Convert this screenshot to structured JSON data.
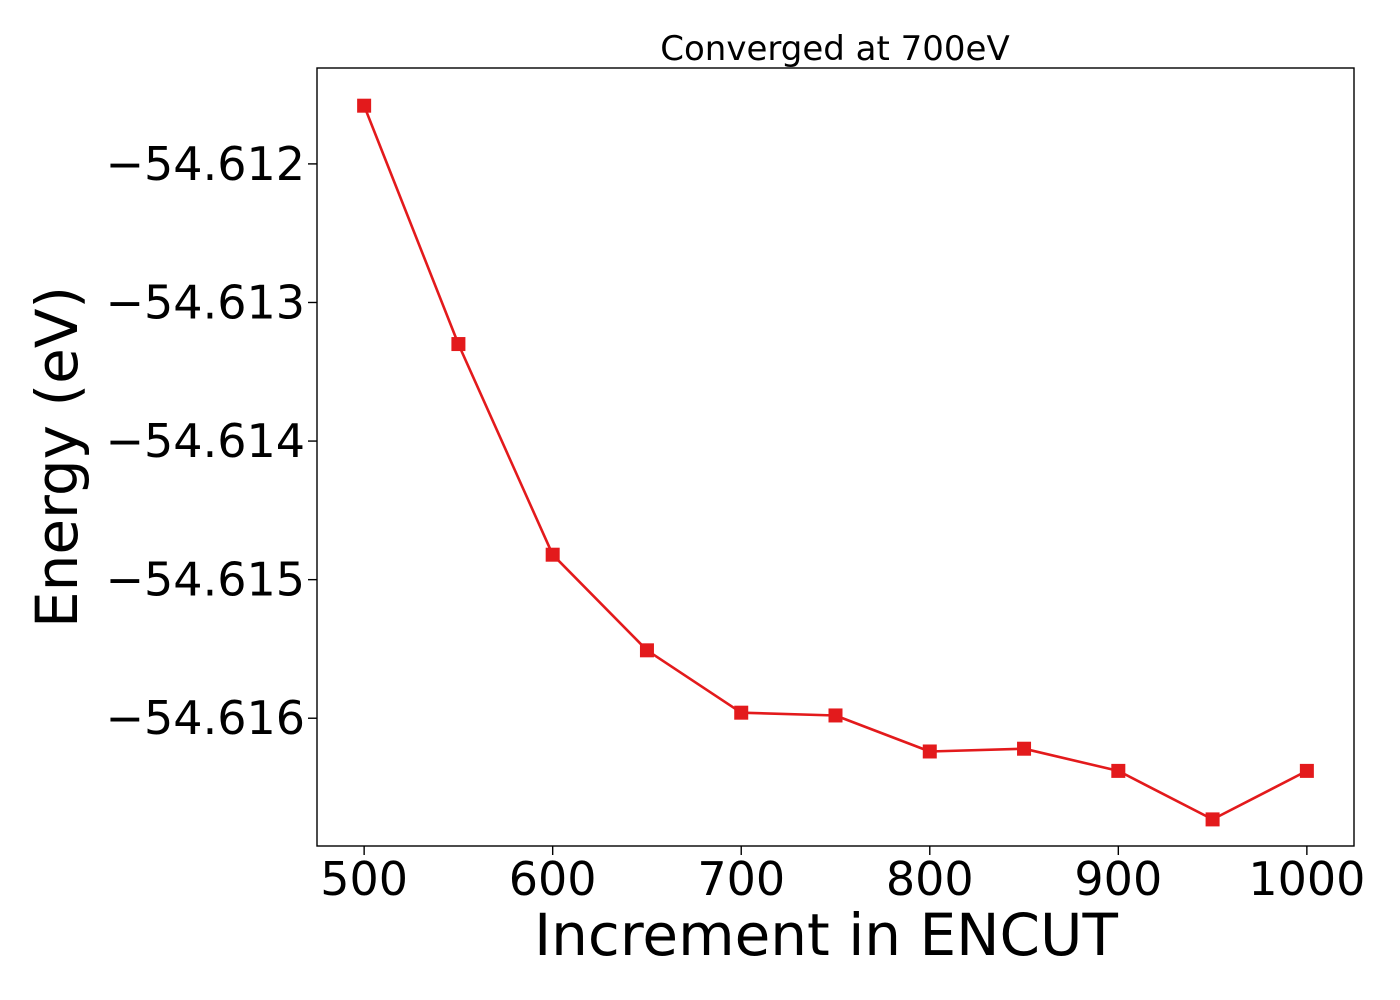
{
  "chart_data": {
    "type": "line",
    "title": "Converged at 700eV",
    "xlabel": "Increment in ENCUT",
    "ylabel": "Energy (eV)",
    "x": [
      500,
      550,
      600,
      650,
      700,
      750,
      800,
      850,
      900,
      950,
      1000
    ],
    "series": [
      {
        "values": [
          -54.61158,
          -54.6133,
          -54.61482,
          -54.61551,
          -54.61596,
          -54.61598,
          -54.61624,
          -54.61622,
          -54.61638,
          -54.61673,
          -54.61638
        ],
        "color": "#e31a1c",
        "marker": "square"
      }
    ],
    "xlim": [
      475,
      1025
    ],
    "ylim": [
      -54.616922,
      -54.611308
    ],
    "xticks": [
      500,
      600,
      700,
      800,
      900,
      1000
    ],
    "xtick_labels": [
      "500",
      "600",
      "700",
      "800",
      "900",
      "1000"
    ],
    "yticks": [
      -54.612,
      -54.613,
      -54.614,
      -54.615,
      -54.616
    ],
    "ytick_labels": [
      "−54.612",
      "−54.613",
      "−54.614",
      "−54.615",
      "−54.616"
    ],
    "grid": false,
    "legend": "none"
  }
}
